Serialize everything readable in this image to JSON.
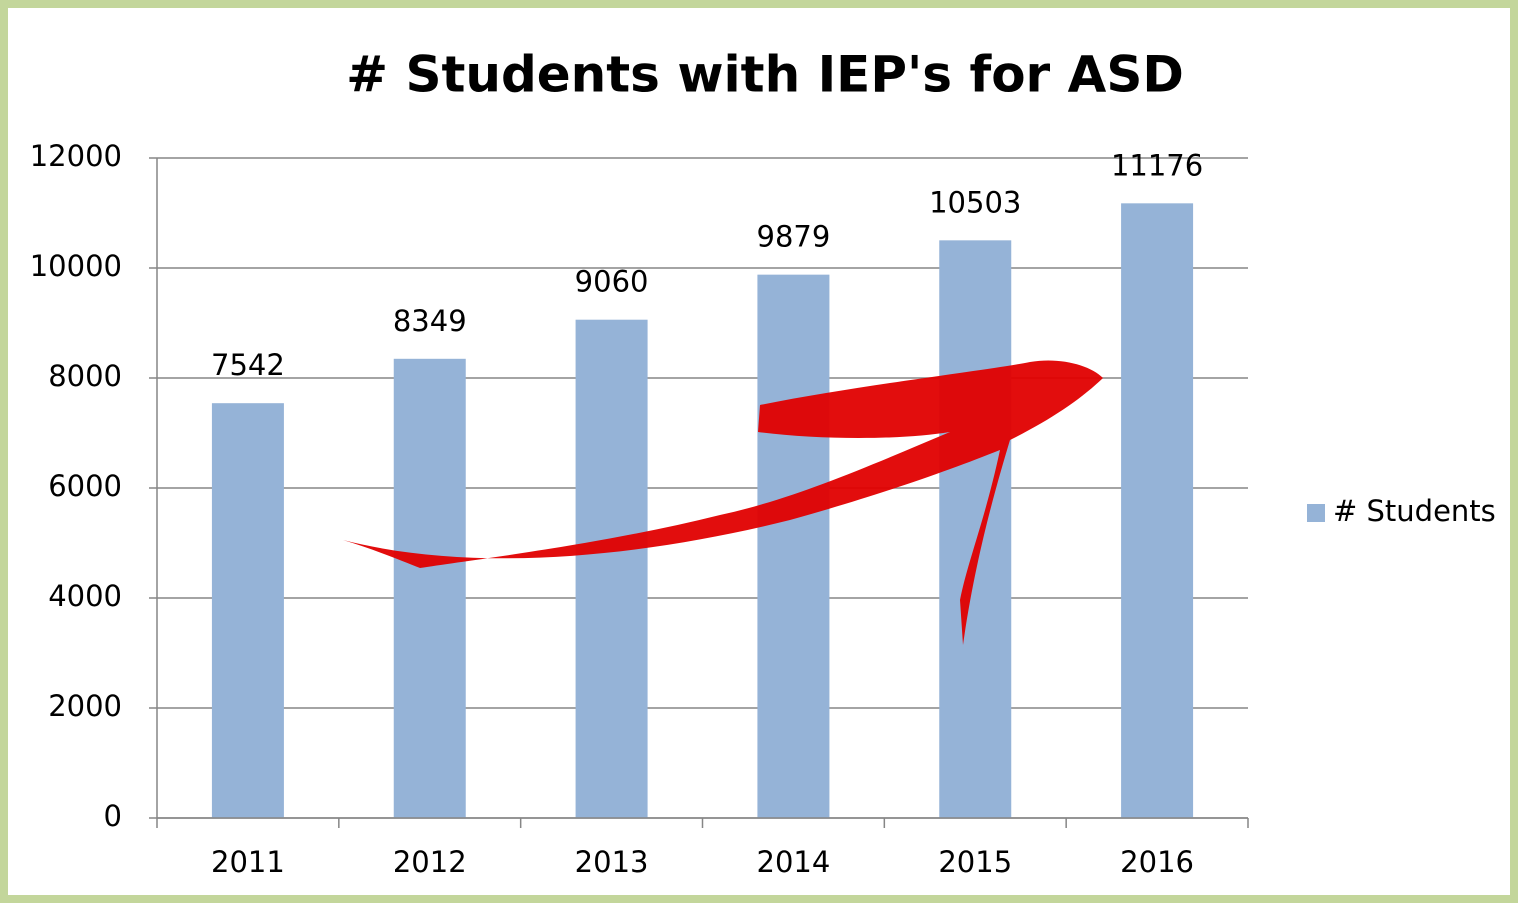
{
  "chart_data": {
    "type": "bar",
    "title": "# Students with IEP's for ASD",
    "categories": [
      "2011",
      "2012",
      "2013",
      "2014",
      "2015",
      "2016"
    ],
    "series": [
      {
        "name": "# Students",
        "color": "#95b3d7",
        "values": [
          7542,
          8349,
          9060,
          9879,
          10503,
          11176
        ]
      }
    ],
    "ylim": [
      0,
      12000
    ],
    "yticks": [
      0,
      2000,
      4000,
      6000,
      8000,
      10000,
      12000
    ],
    "grid": true,
    "legend": "right"
  }
}
